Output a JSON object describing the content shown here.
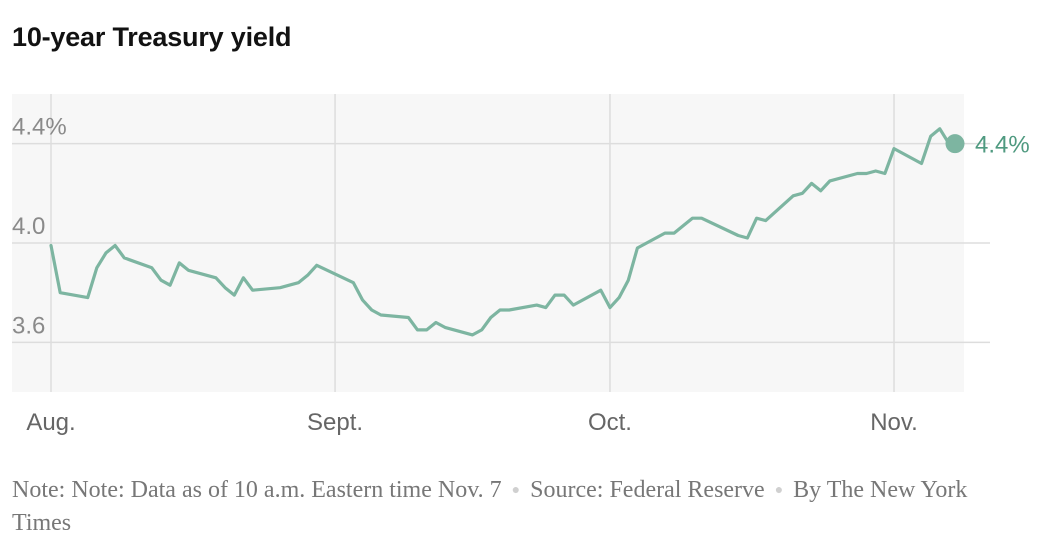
{
  "title": "10-year Treasury yield",
  "footer": {
    "note": "Note: Note: Data as of 10 a.m. Eastern time Nov. 7",
    "source": "Source: Federal Reserve",
    "byline": "By The New York Times"
  },
  "colors": {
    "line": "#7db5a1",
    "end_label": "#4f9a80",
    "panel": "#f7f7f7",
    "grid": "#dddddd"
  },
  "chart_data": {
    "type": "line",
    "title": "10-year Treasury yield",
    "xlabel": "",
    "ylabel": "",
    "x_tick_labels": [
      "Aug.",
      "Sept.",
      "Oct.",
      "Nov."
    ],
    "y_tick_labels": [
      "4.4%",
      "4.0",
      "3.6"
    ],
    "y_ticks": [
      4.4,
      4.0,
      3.6
    ],
    "ylim": [
      3.4,
      4.6
    ],
    "xlim": [
      "2024-08-01",
      "2024-11-07"
    ],
    "grid": true,
    "end_label": "4.4%",
    "series": [
      {
        "x": [
          "2024-08-01",
          "2024-08-02",
          "2024-08-05",
          "2024-08-06",
          "2024-08-07",
          "2024-08-08",
          "2024-08-09",
          "2024-08-12",
          "2024-08-13",
          "2024-08-14",
          "2024-08-15",
          "2024-08-16",
          "2024-08-19",
          "2024-08-20",
          "2024-08-21",
          "2024-08-22",
          "2024-08-23",
          "2024-08-26",
          "2024-08-27",
          "2024-08-28",
          "2024-08-29",
          "2024-08-30",
          "2024-09-03",
          "2024-09-04",
          "2024-09-05",
          "2024-09-06",
          "2024-09-09",
          "2024-09-10",
          "2024-09-11",
          "2024-09-12",
          "2024-09-13",
          "2024-09-16",
          "2024-09-17",
          "2024-09-18",
          "2024-09-19",
          "2024-09-20",
          "2024-09-23",
          "2024-09-24",
          "2024-09-25",
          "2024-09-26",
          "2024-09-27",
          "2024-09-30",
          "2024-10-01",
          "2024-10-02",
          "2024-10-03",
          "2024-10-04",
          "2024-10-07",
          "2024-10-08",
          "2024-10-09",
          "2024-10-10",
          "2024-10-11",
          "2024-10-15",
          "2024-10-16",
          "2024-10-17",
          "2024-10-18",
          "2024-10-21",
          "2024-10-22",
          "2024-10-23",
          "2024-10-24",
          "2024-10-25",
          "2024-10-28",
          "2024-10-29",
          "2024-10-30",
          "2024-10-31",
          "2024-11-01",
          "2024-11-04",
          "2024-11-05",
          "2024-11-06",
          "2024-11-07"
        ],
        "values": [
          3.99,
          3.8,
          3.78,
          3.9,
          3.96,
          3.99,
          3.94,
          3.9,
          3.85,
          3.83,
          3.92,
          3.89,
          3.86,
          3.82,
          3.79,
          3.86,
          3.81,
          3.82,
          3.83,
          3.84,
          3.87,
          3.91,
          3.84,
          3.77,
          3.73,
          3.71,
          3.7,
          3.65,
          3.65,
          3.68,
          3.66,
          3.63,
          3.65,
          3.7,
          3.73,
          3.73,
          3.75,
          3.74,
          3.79,
          3.79,
          3.75,
          3.81,
          3.74,
          3.78,
          3.85,
          3.98,
          4.04,
          4.04,
          4.07,
          4.1,
          4.1,
          4.03,
          4.02,
          4.1,
          4.09,
          4.19,
          4.2,
          4.24,
          4.21,
          4.25,
          4.28,
          4.28,
          4.29,
          4.28,
          4.38,
          4.32,
          4.43,
          4.46,
          4.4
        ]
      }
    ]
  }
}
